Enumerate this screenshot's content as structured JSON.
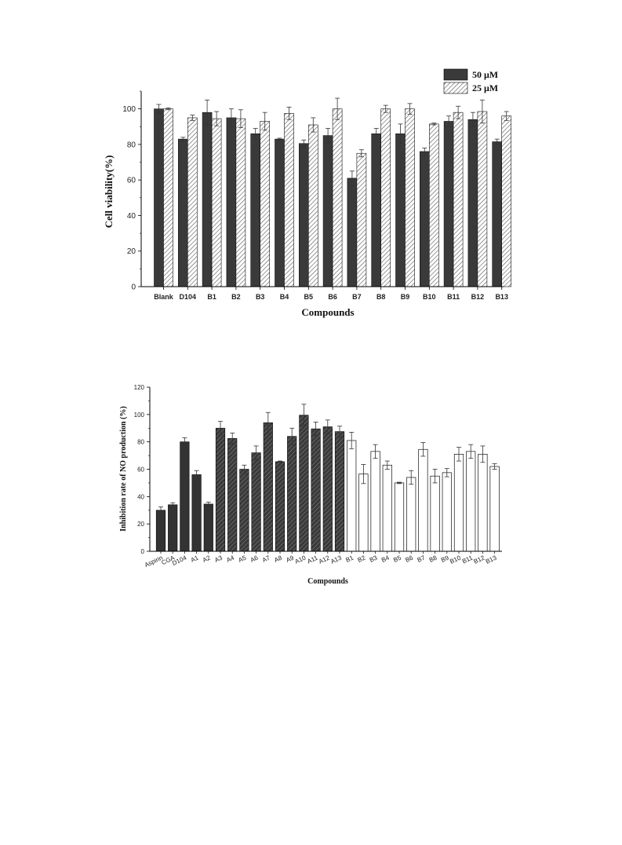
{
  "chart_data": [
    {
      "type": "bar",
      "xlabel": "Compounds",
      "ylabel": "Cell viability(%)",
      "ylim": [
        0,
        110
      ],
      "yticks": [
        0,
        20,
        40,
        60,
        80,
        100
      ],
      "legend_position": "top-right",
      "categories": [
        "Blank",
        "D104",
        "B1",
        "B2",
        "B3",
        "B4",
        "B5",
        "B6",
        "B7",
        "B8",
        "B9",
        "B10",
        "B11",
        "B12",
        "B13"
      ],
      "series": [
        {
          "name": "50 μM",
          "color": "#3a3a3a",
          "values": [
            100,
            83,
            98,
            95,
            86,
            83,
            80.5,
            85,
            61,
            86,
            86,
            76,
            93,
            94,
            81.5
          ],
          "errors": [
            2.5,
            1,
            7,
            5,
            3,
            0.5,
            2,
            4,
            4,
            3,
            5.5,
            2,
            3,
            4,
            1.5
          ]
        },
        {
          "name": "25 μM",
          "color": "#ffffff",
          "pattern": "hatch",
          "values": [
            100,
            95,
            94.5,
            94.5,
            93,
            97.5,
            91,
            100,
            75,
            100,
            100,
            91.5,
            98,
            98.5,
            96
          ],
          "errors": [
            0.5,
            1.5,
            4,
            5,
            5,
            3.5,
            4,
            6,
            2,
            2,
            3,
            0.5,
            3.5,
            6.5,
            2.5
          ]
        }
      ]
    },
    {
      "type": "bar",
      "xlabel": "Compounds",
      "ylabel": "Inhibition rate of NO production (%)",
      "ylim": [
        0,
        120
      ],
      "yticks": [
        0,
        20,
        40,
        60,
        80,
        100,
        120
      ],
      "categories": [
        "Aspirin",
        "CGA",
        "D104",
        "A1",
        "A2",
        "A3",
        "A4",
        "A5",
        "A6",
        "A7",
        "A8",
        "A9",
        "A10",
        "A11",
        "A12",
        "A13",
        "B1",
        "B2",
        "B3",
        "B4",
        "B5",
        "B6",
        "B7",
        "B8",
        "B9",
        "B10",
        "B11",
        "B12",
        "B13"
      ],
      "values": [
        30,
        34,
        80,
        56,
        34.5,
        90,
        82.5,
        60,
        72,
        94,
        65.5,
        84,
        99.5,
        89.5,
        91,
        87.5,
        81,
        56.5,
        73,
        63,
        50,
        54,
        74.5,
        55,
        57.5,
        71,
        73,
        71,
        62
      ],
      "errors": [
        2.5,
        1.5,
        3,
        3,
        1.5,
        5,
        4,
        3,
        5,
        7.5,
        0.5,
        6,
        8,
        5,
        5,
        4,
        6,
        7,
        5,
        3,
        0.5,
        5,
        5,
        5,
        3,
        5,
        5,
        6,
        2
      ],
      "styles": [
        "dark",
        "dark",
        "dark",
        "dark",
        "dark",
        "hatch",
        "hatch",
        "hatch",
        "hatch",
        "hatch",
        "hatch",
        "hatch",
        "hatch",
        "hatch",
        "hatch",
        "hatch",
        "white",
        "white",
        "white",
        "white",
        "white",
        "white",
        "white",
        "white",
        "white",
        "white",
        "white",
        "white",
        "white"
      ]
    }
  ]
}
